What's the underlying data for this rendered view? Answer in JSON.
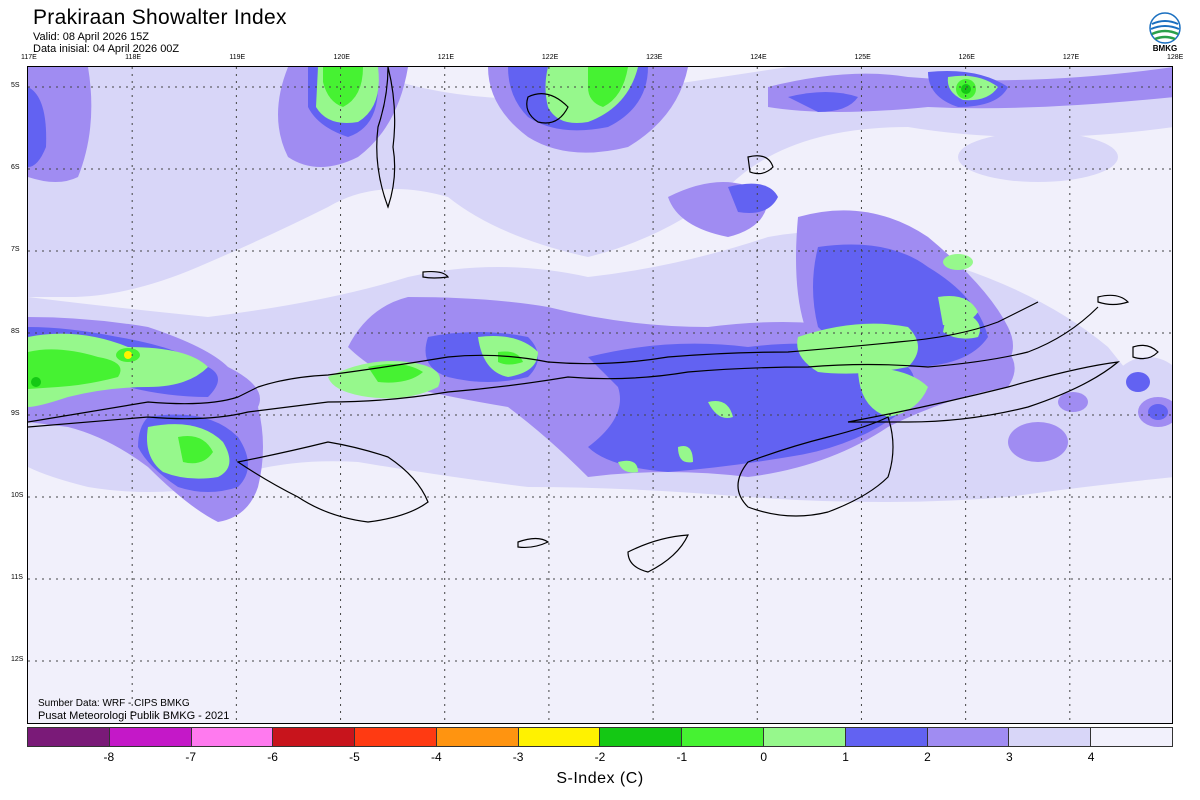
{
  "header": {
    "title": "Prakiraan Showalter Index",
    "valid": "Valid: 08 April 2026 15Z",
    "init": "Data inisial: 04 April 2026 00Z"
  },
  "logo": {
    "text": "BMKG"
  },
  "axes": {
    "lon_labels": [
      "117E",
      "118E",
      "119E",
      "120E",
      "121E",
      "122E",
      "123E",
      "124E",
      "125E",
      "126E",
      "127E",
      "128E"
    ],
    "lat_labels": [
      "5S",
      "6S",
      "7S",
      "8S",
      "9S",
      "10S",
      "11S",
      "12S"
    ]
  },
  "source": {
    "line1": "Sumber Data: WRF - CIPS BMKG",
    "line2": "Pusat Meteorologi Publik BMKG - 2021"
  },
  "colorbar": {
    "colors": [
      "#7a1a78",
      "#c418c8",
      "#ff7aef",
      "#c8141c",
      "#ff3a12",
      "#ff9410",
      "#fff200",
      "#14c814",
      "#46f232",
      "#96f88c",
      "#6262f2",
      "#a08cf2",
      "#d8d6f8",
      "#f2f1fc"
    ],
    "ticks": [
      "-8",
      "-7",
      "-6",
      "-5",
      "-4",
      "-3",
      "-2",
      "-1",
      "0",
      "1",
      "2",
      "3",
      "4"
    ],
    "label": "S-Index (C)"
  }
}
